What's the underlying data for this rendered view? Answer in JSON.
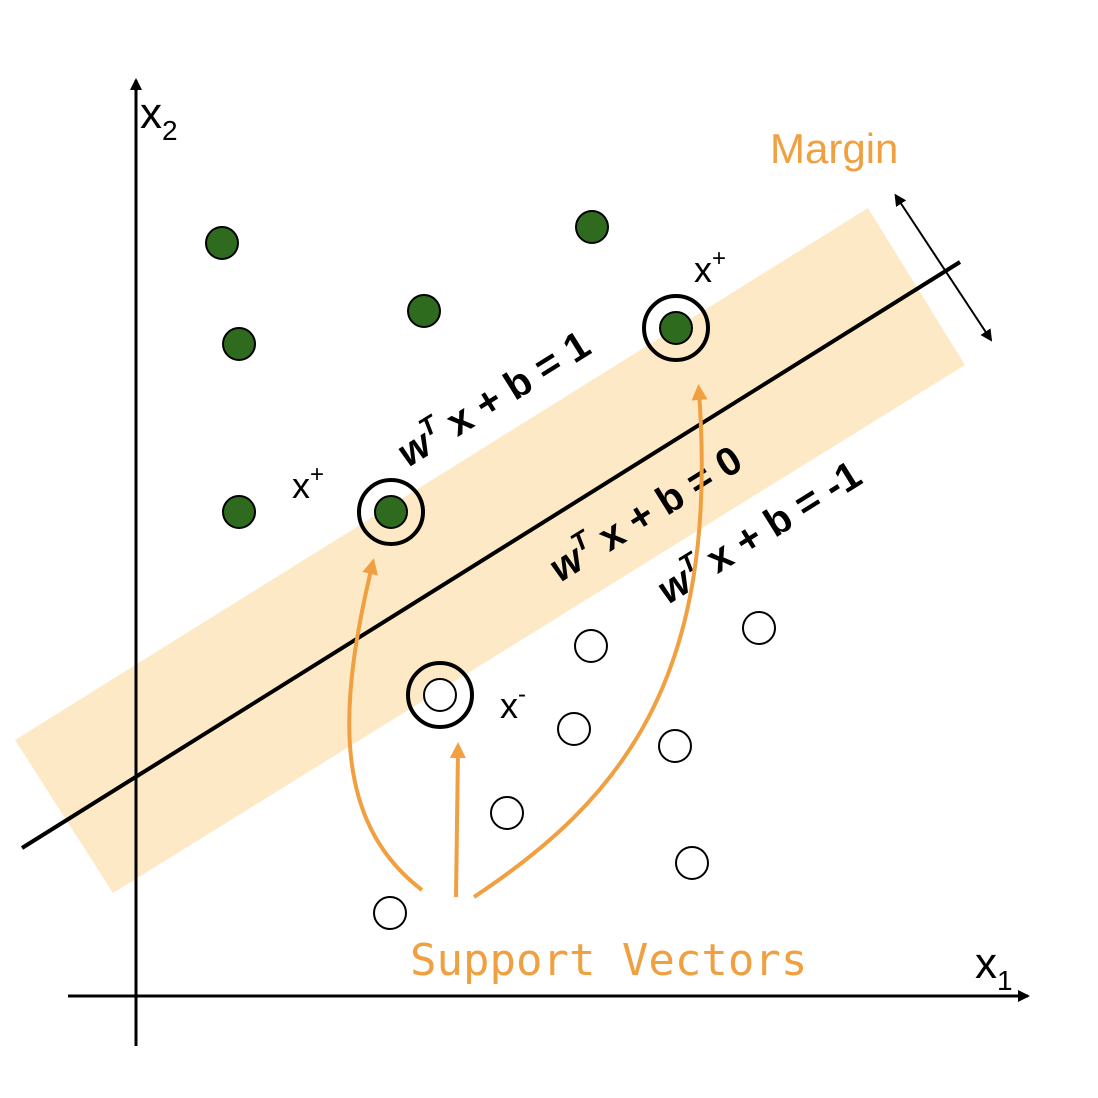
{
  "axes": {
    "x_label": "x",
    "x_sub": "1",
    "y_label": "x",
    "y_sub": "2"
  },
  "labels": {
    "margin": "Margin",
    "support_vectors": "Support Vectors",
    "x_plus_1": "x",
    "x_plus_1_sup": "+",
    "x_plus_2": "x",
    "x_plus_2_sup": "+",
    "x_minus": "x",
    "x_minus_sup": "-"
  },
  "equations": {
    "upper": {
      "w": "w",
      "sup": "T",
      "rest": " x + b = 1"
    },
    "middle": {
      "w": "w",
      "sup": "T",
      "rest": " x + b = 0"
    },
    "lower": {
      "w": "w",
      "sup": "T",
      "rest": " x + b = -1"
    }
  },
  "colors": {
    "positive_point": "#2e6b1e",
    "margin_band": "#fde9c6",
    "annotation": "#f0a040",
    "line": "#000000"
  }
}
